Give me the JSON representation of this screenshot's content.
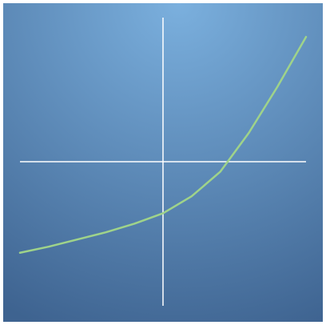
{
  "chart_data": {
    "type": "line",
    "x": [
      -5,
      -4,
      -3,
      -2,
      -1,
      0,
      1,
      2,
      3,
      4,
      5
    ],
    "values": [
      -3.16,
      -2.95,
      -2.7,
      -2.45,
      -2.15,
      -1.79,
      -1.2,
      -0.35,
      1.0,
      2.6,
      4.33
    ],
    "color": "#9fd38a",
    "xlim": [
      -5,
      5
    ],
    "ylim": [
      -5,
      5
    ]
  }
}
